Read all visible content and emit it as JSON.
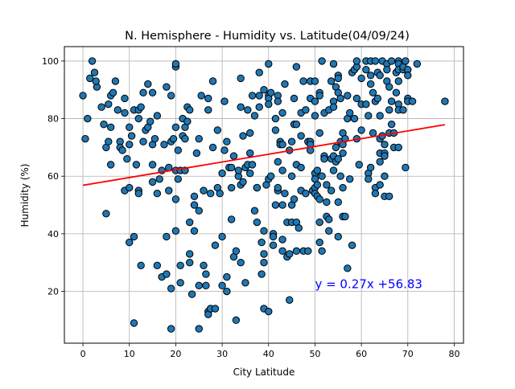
{
  "chart_data": {
    "type": "scatter",
    "title": "N. Hemisphere - Humidity vs. Latitude(04/09/24)",
    "xlabel": "City Latitude",
    "ylabel": "Humidity (%)",
    "xlim": [
      -4,
      82
    ],
    "ylim": [
      2,
      105
    ],
    "xticks": [
      0,
      10,
      20,
      30,
      40,
      50,
      60,
      70,
      80
    ],
    "yticks": [
      20,
      40,
      60,
      80,
      100
    ],
    "grid": true,
    "colors": {
      "point_fill": "#1f77b4",
      "point_edge": "#000000",
      "regression": "#ff0000",
      "equation": "#0000ff"
    },
    "regression": {
      "slope": 0.27,
      "intercept": 56.83,
      "x_range": [
        0,
        78
      ],
      "label": "y = 0.27x +56.83",
      "label_pos": [
        50,
        20
      ]
    },
    "points": [
      [
        0,
        88
      ],
      [
        0.5,
        73
      ],
      [
        1,
        80
      ],
      [
        1.5,
        94
      ],
      [
        2,
        100
      ],
      [
        2.5,
        96
      ],
      [
        3,
        91
      ],
      [
        2.8,
        93
      ],
      [
        4,
        84
      ],
      [
        4.5,
        78
      ],
      [
        5,
        70
      ],
      [
        5,
        47
      ],
      [
        5.5,
        85
      ],
      [
        5.5,
        72
      ],
      [
        6,
        88
      ],
      [
        6,
        77
      ],
      [
        6,
        64
      ],
      [
        6.5,
        89
      ],
      [
        7,
        93
      ],
      [
        7.5,
        83
      ],
      [
        8,
        72
      ],
      [
        8,
        70
      ],
      [
        8.5,
        69
      ],
      [
        9,
        87
      ],
      [
        9,
        82
      ],
      [
        9,
        55
      ],
      [
        9.5,
        66
      ],
      [
        10,
        77
      ],
      [
        10,
        71
      ],
      [
        10,
        56
      ],
      [
        10,
        37
      ],
      [
        10.5,
        74
      ],
      [
        11,
        83
      ],
      [
        11,
        39
      ],
      [
        11,
        9
      ],
      [
        11.5,
        64
      ],
      [
        12,
        83
      ],
      [
        12,
        80
      ],
      [
        12,
        55
      ],
      [
        12,
        54
      ],
      [
        12.5,
        84
      ],
      [
        12.5,
        29
      ],
      [
        13,
        89
      ],
      [
        13,
        72
      ],
      [
        13.5,
        76
      ],
      [
        14,
        92
      ],
      [
        14,
        77
      ],
      [
        14.5,
        79
      ],
      [
        15,
        89
      ],
      [
        15,
        71
      ],
      [
        15,
        64
      ],
      [
        15,
        58
      ],
      [
        15.5,
        73
      ],
      [
        16,
        81
      ],
      [
        16,
        54
      ],
      [
        16,
        29
      ],
      [
        16.5,
        59
      ],
      [
        17,
        62
      ],
      [
        17,
        25
      ],
      [
        17.5,
        71
      ],
      [
        18,
        91
      ],
      [
        18,
        26
      ],
      [
        18,
        39
      ],
      [
        18.5,
        63
      ],
      [
        18.5,
        55
      ],
      [
        19,
        88
      ],
      [
        19,
        72
      ],
      [
        19,
        21
      ],
      [
        19,
        7
      ],
      [
        19.5,
        73
      ],
      [
        20,
        98
      ],
      [
        20,
        99
      ],
      [
        20,
        77
      ],
      [
        20,
        62
      ],
      [
        20,
        52
      ],
      [
        20,
        41
      ],
      [
        20.5,
        69
      ],
      [
        20.5,
        59
      ],
      [
        21,
        62
      ],
      [
        21,
        23
      ],
      [
        21,
        29
      ],
      [
        21.5,
        80
      ],
      [
        21.5,
        74
      ],
      [
        22,
        77
      ],
      [
        22,
        73
      ],
      [
        22,
        62
      ],
      [
        22.5,
        84
      ],
      [
        22.5,
        79
      ],
      [
        23,
        83
      ],
      [
        23,
        44
      ],
      [
        23,
        33
      ],
      [
        23,
        30
      ],
      [
        23.5,
        19
      ],
      [
        24,
        53
      ],
      [
        24,
        50
      ],
      [
        24,
        41
      ],
      [
        24.5,
        68
      ],
      [
        25,
        73
      ],
      [
        25,
        48
      ],
      [
        25,
        22
      ],
      [
        25,
        7
      ],
      [
        25.5,
        88
      ],
      [
        26,
        55
      ],
      [
        26,
        29
      ],
      [
        26.5,
        22
      ],
      [
        26.5,
        26
      ],
      [
        27,
        87
      ],
      [
        27,
        83
      ],
      [
        27,
        13
      ],
      [
        27,
        12
      ],
      [
        27.5,
        54
      ],
      [
        27.5,
        14
      ],
      [
        28,
        93
      ],
      [
        28,
        70
      ],
      [
        28.5,
        14
      ],
      [
        28.5,
        36
      ],
      [
        29,
        76
      ],
      [
        29,
        56
      ],
      [
        29.5,
        54
      ],
      [
        30,
        61
      ],
      [
        30,
        22
      ],
      [
        30,
        39
      ],
      [
        30.5,
        86
      ],
      [
        30.5,
        69
      ],
      [
        31,
        20
      ],
      [
        31,
        25
      ],
      [
        31,
        72
      ],
      [
        31.5,
        63
      ],
      [
        32,
        45
      ],
      [
        32,
        56
      ],
      [
        32,
        63
      ],
      [
        32.5,
        67
      ],
      [
        32.5,
        32
      ],
      [
        33,
        34
      ],
      [
        33,
        10
      ],
      [
        33.5,
        60
      ],
      [
        33.5,
        62
      ],
      [
        34,
        94
      ],
      [
        34,
        84
      ],
      [
        34,
        57
      ],
      [
        34,
        30
      ],
      [
        34.5,
        74
      ],
      [
        34.5,
        58
      ],
      [
        35,
        23
      ],
      [
        35,
        63
      ],
      [
        35.5,
        83
      ],
      [
        35.5,
        64
      ],
      [
        36,
        75
      ],
      [
        36,
        61
      ],
      [
        36,
        68
      ],
      [
        36.5,
        88
      ],
      [
        36.5,
        64
      ],
      [
        37,
        81
      ],
      [
        37,
        48
      ],
      [
        37.5,
        56
      ],
      [
        37.5,
        44
      ],
      [
        37.5,
        56
      ],
      [
        38,
        88
      ],
      [
        38,
        84
      ],
      [
        38,
        96
      ],
      [
        38.5,
        37
      ],
      [
        38.5,
        26
      ],
      [
        39,
        90
      ],
      [
        39,
        41
      ],
      [
        39,
        33
      ],
      [
        39,
        30
      ],
      [
        39,
        14
      ],
      [
        39.5,
        57
      ],
      [
        40,
        99
      ],
      [
        40,
        88
      ],
      [
        40,
        87
      ],
      [
        40,
        85
      ],
      [
        40,
        59
      ],
      [
        40,
        13
      ],
      [
        40.5,
        89
      ],
      [
        40.5,
        60
      ],
      [
        41,
        40
      ],
      [
        41,
        36
      ],
      [
        41,
        39
      ],
      [
        41.5,
        76
      ],
      [
        41.5,
        50
      ],
      [
        41.5,
        80
      ],
      [
        42,
        88
      ],
      [
        42,
        86
      ],
      [
        42,
        65
      ],
      [
        42,
        55
      ],
      [
        42,
        56
      ],
      [
        42.5,
        72
      ],
      [
        42.5,
        71
      ],
      [
        43,
        82
      ],
      [
        43,
        71
      ],
      [
        43,
        62
      ],
      [
        43,
        50
      ],
      [
        43,
        34
      ],
      [
        43,
        38
      ],
      [
        43.5,
        92
      ],
      [
        43.5,
        54
      ],
      [
        44,
        44
      ],
      [
        44,
        32
      ],
      [
        44.5,
        69
      ],
      [
        44.5,
        17
      ],
      [
        44.5,
        33
      ],
      [
        45,
        72
      ],
      [
        45,
        60
      ],
      [
        45,
        50
      ],
      [
        45,
        44
      ],
      [
        45.5,
        87
      ],
      [
        45.5,
        78
      ],
      [
        45.5,
        52
      ],
      [
        46,
        98
      ],
      [
        46,
        78
      ],
      [
        46,
        64
      ],
      [
        46,
        44
      ],
      [
        46,
        34
      ],
      [
        46.5,
        42
      ],
      [
        47,
        82
      ],
      [
        47,
        74
      ],
      [
        47,
        63
      ],
      [
        47,
        55
      ],
      [
        47.5,
        93
      ],
      [
        47.5,
        34
      ],
      [
        48,
        83
      ],
      [
        48,
        54
      ],
      [
        48.5,
        72
      ],
      [
        48.5,
        34
      ],
      [
        49,
        93
      ],
      [
        49,
        87
      ],
      [
        49,
        72
      ],
      [
        49,
        71
      ],
      [
        49,
        69
      ],
      [
        49.5,
        55
      ],
      [
        50,
        93
      ],
      [
        50,
        86
      ],
      [
        50,
        81
      ],
      [
        50,
        61
      ],
      [
        50,
        59
      ],
      [
        50,
        56
      ],
      [
        50,
        54
      ],
      [
        50.5,
        62
      ],
      [
        50.5,
        57
      ],
      [
        50.5,
        53
      ],
      [
        51,
        89
      ],
      [
        51,
        88
      ],
      [
        51,
        75
      ],
      [
        51,
        52
      ],
      [
        51,
        44
      ],
      [
        51,
        37
      ],
      [
        51.5,
        100
      ],
      [
        51.5,
        60
      ],
      [
        51.5,
        34
      ],
      [
        52,
        82
      ],
      [
        52,
        67
      ],
      [
        52,
        66
      ],
      [
        52.5,
        57
      ],
      [
        52.5,
        51
      ],
      [
        52.5,
        46
      ],
      [
        53,
        83
      ],
      [
        53,
        45
      ],
      [
        53,
        41
      ],
      [
        53.5,
        93
      ],
      [
        53.5,
        66
      ],
      [
        53.5,
        55
      ],
      [
        54,
        99
      ],
      [
        54,
        86
      ],
      [
        54,
        84
      ],
      [
        54,
        67
      ],
      [
        54,
        62
      ],
      [
        54.5,
        91
      ],
      [
        54.5,
        70
      ],
      [
        54.5,
        65
      ],
      [
        55,
        95
      ],
      [
        55,
        94
      ],
      [
        55,
        89
      ],
      [
        55,
        66
      ],
      [
        55,
        51
      ],
      [
        55,
        39
      ],
      [
        55.5,
        87
      ],
      [
        55.5,
        72
      ],
      [
        55.5,
        60
      ],
      [
        56,
        75
      ],
      [
        56,
        71
      ],
      [
        56,
        68
      ],
      [
        56,
        56
      ],
      [
        56,
        46
      ],
      [
        56.5,
        73
      ],
      [
        56.5,
        46
      ],
      [
        57,
        88
      ],
      [
        57,
        80
      ],
      [
        57,
        28
      ],
      [
        57.5,
        82
      ],
      [
        57.5,
        59
      ],
      [
        58,
        96
      ],
      [
        58,
        36
      ],
      [
        58.5,
        97
      ],
      [
        58.5,
        80
      ],
      [
        59,
        98
      ],
      [
        59,
        87
      ],
      [
        59,
        100
      ],
      [
        59,
        73
      ],
      [
        59.5,
        64
      ],
      [
        60,
        94
      ],
      [
        60,
        85
      ],
      [
        60,
        76
      ],
      [
        61,
        97
      ],
      [
        61,
        100
      ],
      [
        61,
        85
      ],
      [
        61.5,
        81
      ],
      [
        61.5,
        61
      ],
      [
        61.5,
        59
      ],
      [
        62,
        100
      ],
      [
        62,
        95
      ],
      [
        62,
        92
      ],
      [
        62,
        63
      ],
      [
        62.5,
        89
      ],
      [
        62.5,
        75
      ],
      [
        63,
        100
      ],
      [
        63,
        86
      ],
      [
        63,
        56
      ],
      [
        63,
        54
      ],
      [
        63.5,
        96
      ],
      [
        63.5,
        87
      ],
      [
        64,
        95
      ],
      [
        64,
        81
      ],
      [
        64,
        73
      ],
      [
        64,
        68
      ],
      [
        64,
        65
      ],
      [
        64,
        57
      ],
      [
        64.5,
        100
      ],
      [
        64.5,
        74
      ],
      [
        65,
        68
      ],
      [
        65,
        71
      ],
      [
        65,
        67
      ],
      [
        65,
        60
      ],
      [
        65,
        53
      ],
      [
        65.5,
        99
      ],
      [
        65.5,
        97
      ],
      [
        65.5,
        93
      ],
      [
        66,
        91
      ],
      [
        66,
        83
      ],
      [
        66,
        75
      ],
      [
        66,
        53
      ],
      [
        66.5,
        100
      ],
      [
        66.5,
        86
      ],
      [
        66.5,
        78
      ],
      [
        67,
        75
      ],
      [
        67,
        70
      ],
      [
        67.5,
        96
      ],
      [
        67.5,
        89
      ],
      [
        68,
        100
      ],
      [
        68,
        99
      ],
      [
        68,
        97
      ],
      [
        68,
        93
      ],
      [
        68,
        85
      ],
      [
        68,
        83
      ],
      [
        68,
        70
      ],
      [
        69,
        97
      ],
      [
        69,
        83
      ],
      [
        69,
        98
      ],
      [
        69.5,
        100
      ],
      [
        69.5,
        63
      ],
      [
        70,
        97
      ],
      [
        70,
        95
      ],
      [
        70,
        87
      ],
      [
        70,
        86
      ],
      [
        71,
        86
      ],
      [
        72,
        99
      ],
      [
        78,
        86
      ]
    ]
  }
}
